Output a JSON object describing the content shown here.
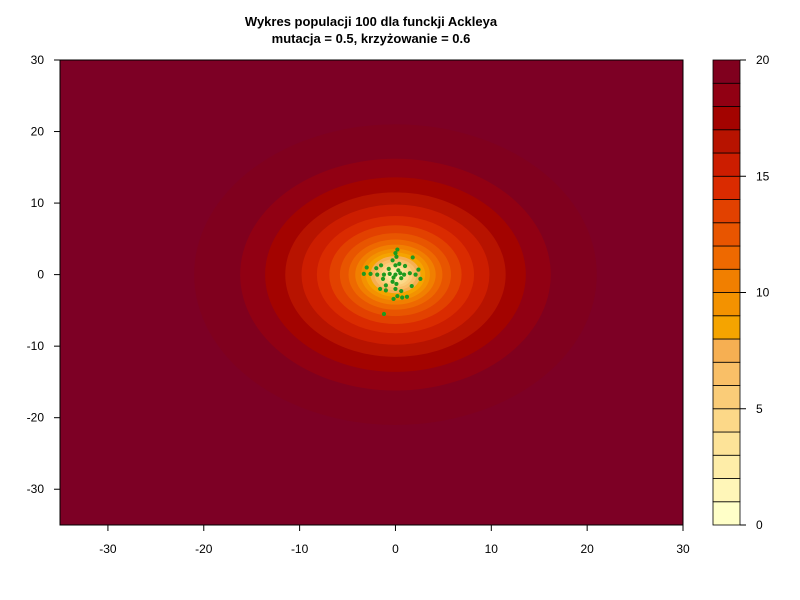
{
  "chart_data": {
    "type": "contour",
    "title": "Wykres populacji 100 dla funckji Ackleya",
    "subtitle": "mutacja = 0.5, krzyżowanie = 0.6",
    "xlabel": "",
    "ylabel": "",
    "xlim": [
      -35,
      30
    ],
    "ylim": [
      -35,
      30
    ],
    "x_ticks": [
      -30,
      -20,
      -10,
      0,
      10,
      20,
      30
    ],
    "y_ticks": [
      -30,
      -20,
      -10,
      0,
      10,
      20,
      30
    ],
    "x_tick_labels": [
      "-30",
      "-20",
      "-10",
      "0",
      "10",
      "20",
      "30"
    ],
    "y_tick_labels": [
      "-30",
      "-20",
      "-10",
      "0",
      "10",
      "20",
      "30"
    ],
    "grid": false,
    "levels": [
      0,
      1,
      2,
      3,
      4,
      5,
      6,
      7,
      8,
      9,
      10,
      11,
      12,
      13,
      14,
      15,
      16,
      17,
      18,
      19,
      20
    ],
    "level_colors": [
      "#FFFFC8",
      "#FFF6B8",
      "#FEEDA8",
      "#FDE398",
      "#FCD888",
      "#FACC78",
      "#F9BF67",
      "#F6AF52",
      "#F5A400",
      "#F39200",
      "#F17F00",
      "#EE6900",
      "#E85500",
      "#E24100",
      "#DA2B00",
      "#CC1D00",
      "#B71300",
      "#A30300",
      "#910013",
      "#80001E"
    ],
    "outer_color": "#7D0025",
    "contour_radii": [
      {
        "level": 19,
        "r": 21.0
      },
      {
        "level": 18,
        "r": 16.2
      },
      {
        "level": 17,
        "r": 13.6
      },
      {
        "level": 16,
        "r": 11.5
      },
      {
        "level": 15,
        "r": 9.8
      },
      {
        "level": 14,
        "r": 8.2
      },
      {
        "level": 13,
        "r": 6.9
      },
      {
        "level": 12,
        "r": 5.8
      },
      {
        "level": 11,
        "r": 4.9
      },
      {
        "level": 10,
        "r": 4.2
      },
      {
        "level": 9,
        "r": 3.6
      },
      {
        "level": 8,
        "r": 3.1
      },
      {
        "level": 7,
        "r": 2.6
      },
      {
        "level": 6,
        "r": 2.2
      },
      {
        "level": 5,
        "r": 1.8
      },
      {
        "level": 4,
        "r": 1.45
      },
      {
        "level": 3,
        "r": 1.1
      },
      {
        "level": 2,
        "r": 0.75
      },
      {
        "level": 1,
        "r": 0.4
      }
    ],
    "legend": {
      "placement": "right",
      "tick_values": [
        0,
        5,
        10,
        15,
        20
      ],
      "tick_labels": [
        "0",
        "5",
        "10",
        "15",
        "20"
      ]
    },
    "points_color": "#1E9A1E",
    "points": [
      [
        0.2,
        3.5
      ],
      [
        0.0,
        3.0
      ],
      [
        -0.3,
        2.0
      ],
      [
        0.1,
        2.5
      ],
      [
        0.0,
        1.3
      ],
      [
        0.4,
        1.5
      ],
      [
        1.8,
        2.4
      ],
      [
        1.0,
        1.2
      ],
      [
        -1.5,
        1.3
      ],
      [
        -2.0,
        0.9
      ],
      [
        -3.0,
        1.0
      ],
      [
        -3.3,
        0.1
      ],
      [
        -2.6,
        0.1
      ],
      [
        -1.9,
        0.0
      ],
      [
        -1.2,
        0.0
      ],
      [
        -0.6,
        0.1
      ],
      [
        0.0,
        0.0
      ],
      [
        0.5,
        0.2
      ],
      [
        0.9,
        0.0
      ],
      [
        1.5,
        0.2
      ],
      [
        2.1,
        0.0
      ],
      [
        2.4,
        0.7
      ],
      [
        0.3,
        0.6
      ],
      [
        -0.2,
        -0.4
      ],
      [
        0.6,
        -0.5
      ],
      [
        -1.3,
        -0.6
      ],
      [
        -1.0,
        -1.5
      ],
      [
        -1.6,
        -2.0
      ],
      [
        -1.0,
        -2.2
      ],
      [
        0.1,
        -1.3
      ],
      [
        0.0,
        -2.0
      ],
      [
        0.6,
        -2.3
      ],
      [
        0.7,
        -3.2
      ],
      [
        0.2,
        -3.0
      ],
      [
        -0.2,
        -3.4
      ],
      [
        1.2,
        -3.1
      ],
      [
        1.7,
        -1.6
      ],
      [
        -0.3,
        -1.0
      ],
      [
        -1.2,
        -5.5
      ],
      [
        2.6,
        -0.6
      ],
      [
        -0.7,
        0.8
      ]
    ]
  }
}
